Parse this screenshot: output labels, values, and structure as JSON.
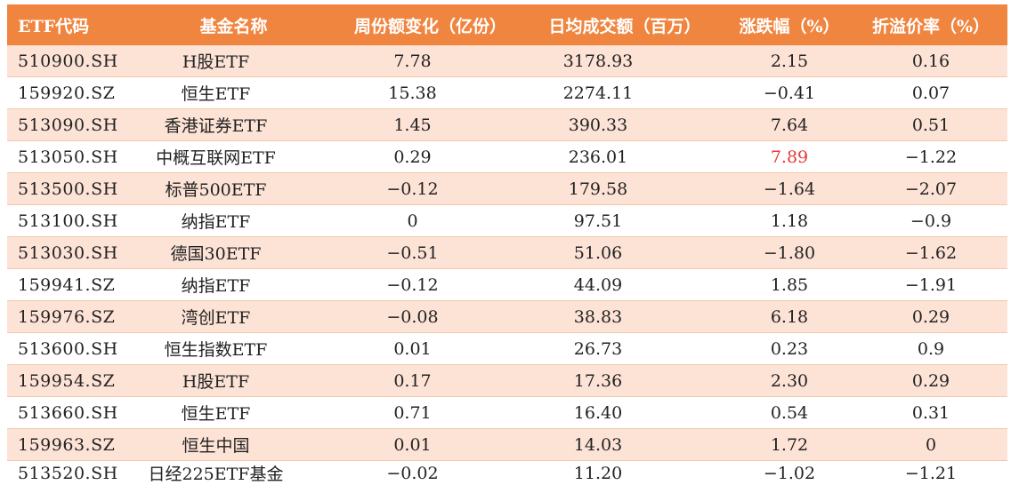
{
  "table": {
    "headers": [
      "ETF代码",
      "基金名称",
      "周份额变化（亿份）",
      "日均成交额（百万）",
      "涨跌幅（%）",
      "折溢价率（%）"
    ],
    "rows": [
      {
        "code": "510900.SH",
        "name": "H股ETF",
        "flow": "7.78",
        "volume": "3178.93",
        "change": "2.15",
        "premium": "0.16"
      },
      {
        "code": "159920.SZ",
        "name": "恒生ETF",
        "flow": "15.38",
        "volume": "2274.11",
        "change": "-0.41",
        "premium": "0.07"
      },
      {
        "code": "513090.SH",
        "name": "香港证券ETF",
        "flow": "1.45",
        "volume": "390.33",
        "change": "7.64",
        "premium": "0.51"
      },
      {
        "code": "513050.SH",
        "name": "中概互联网ETF",
        "flow": "0.29",
        "volume": "236.01",
        "change": "7.89",
        "premium": "-1.22"
      },
      {
        "code": "513500.SH",
        "name": "标普500ETF",
        "flow": "-0.12",
        "volume": "179.58",
        "change": "-1.64",
        "premium": "-2.07"
      },
      {
        "code": "513100.SH",
        "name": "纳指ETF",
        "flow": "0",
        "volume": "97.51",
        "change": "1.18",
        "premium": "-0.9"
      },
      {
        "code": "513030.SH",
        "name": "德国30ETF",
        "flow": "-0.51",
        "volume": "51.06",
        "change": "-1.80",
        "premium": "-1.62"
      },
      {
        "code": "159941.SZ",
        "name": "纳指ETF",
        "flow": "-0.12",
        "volume": "44.09",
        "change": "1.85",
        "premium": "-1.91"
      },
      {
        "code": "159976.SZ",
        "name": "湾创ETF",
        "flow": "-0.08",
        "volume": "38.83",
        "change": "6.18",
        "premium": "0.29"
      },
      {
        "code": "513600.SH",
        "name": "恒生指数ETF",
        "flow": "0.01",
        "volume": "26.73",
        "change": "0.23",
        "premium": "0.9"
      },
      {
        "code": "159954.SZ",
        "name": "H股ETF",
        "flow": "0.17",
        "volume": "17.36",
        "change": "2.30",
        "premium": "0.29"
      },
      {
        "code": "513660.SH",
        "name": "恒生ETF",
        "flow": "0.71",
        "volume": "16.40",
        "change": "0.54",
        "premium": "0.31"
      },
      {
        "code": "159963.SZ",
        "name": "恒生中国",
        "flow": "0.01",
        "volume": "14.03",
        "change": "1.72",
        "premium": "0"
      },
      {
        "code": "513520.SH",
        "name": "日经225ETF基金",
        "flow": "-0.02",
        "volume": "11.20",
        "change": "-1.02",
        "premium": "-1.21"
      }
    ],
    "highlight": {
      "row_code": "513050.SH",
      "column": "change",
      "color": "#e53935"
    },
    "colors": {
      "header_bg": "#f0853f",
      "header_text": "#ffffff",
      "odd_row_bg": "#fde3d6",
      "even_row_bg": "#ffffff"
    }
  }
}
